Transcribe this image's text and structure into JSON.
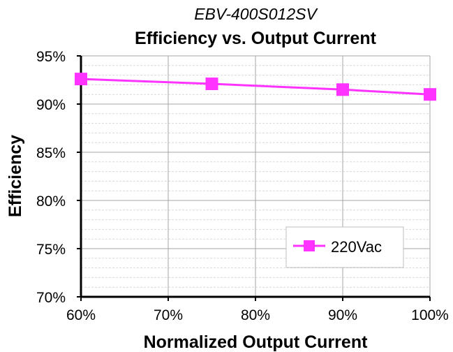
{
  "chart_data": {
    "type": "line",
    "subtitle": "EBV-400S012SV",
    "title": "Efficiency vs. Output Current",
    "xlabel": "Normalized Output Current",
    "ylabel": "Efficiency",
    "x": [
      60,
      75,
      90,
      100
    ],
    "xlim": [
      60,
      100
    ],
    "ylim": [
      70,
      95
    ],
    "x_ticks": [
      "60%",
      "70%",
      "80%",
      "90%",
      "100%"
    ],
    "y_ticks": [
      "70%",
      "75%",
      "80%",
      "85%",
      "90%",
      "95%"
    ],
    "series": [
      {
        "name": "220Vac",
        "values": [
          92.6,
          92.1,
          91.5,
          91.0
        ],
        "color": "#ff33ff",
        "marker": "square"
      }
    ],
    "grid": true,
    "legend": "bottom-right"
  }
}
